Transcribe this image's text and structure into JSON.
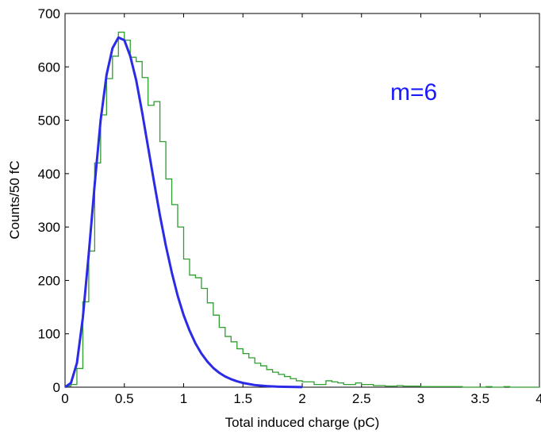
{
  "chart_data": {
    "type": "line",
    "xlabel": "Total induced charge (pC)",
    "ylabel": "Counts/50 fC",
    "xlim": [
      0,
      4
    ],
    "ylim": [
      0,
      700
    ],
    "xticks": [
      0,
      0.5,
      1,
      1.5,
      2,
      2.5,
      3,
      3.5,
      4
    ],
    "xtick_labels": [
      "0",
      "0.5",
      "1",
      "1.5",
      "2",
      "2.5",
      "3",
      "3.5",
      "4"
    ],
    "yticks": [
      0,
      100,
      200,
      300,
      400,
      500,
      600,
      700
    ],
    "ytick_labels": [
      "0",
      "100",
      "200",
      "300",
      "400",
      "500",
      "600",
      "700"
    ],
    "grid": false,
    "annotation": {
      "text": "m=6",
      "color": "#1a1aff"
    },
    "series": [
      {
        "kind": "histogram-step",
        "color": "#2e9e2e",
        "bin_width": 0.05,
        "x": [
          0,
          0.05,
          0.1,
          0.15,
          0.2,
          0.25,
          0.3,
          0.35,
          0.4,
          0.45,
          0.5,
          0.55,
          0.6,
          0.65,
          0.7,
          0.75,
          0.8,
          0.85,
          0.9,
          0.95,
          1.0,
          1.05,
          1.1,
          1.15,
          1.2,
          1.25,
          1.3,
          1.35,
          1.4,
          1.45,
          1.5,
          1.55,
          1.6,
          1.65,
          1.7,
          1.75,
          1.8,
          1.85,
          1.9,
          1.95,
          2.0,
          2.05,
          2.1,
          2.15,
          2.2,
          2.25,
          2.3,
          2.35,
          2.4,
          2.45,
          2.5,
          2.55,
          2.6,
          2.65,
          2.7,
          2.75,
          2.8,
          2.85,
          2.9,
          2.95,
          3.0,
          3.05,
          3.1,
          3.15,
          3.2,
          3.25,
          3.3,
          3.35,
          3.4,
          3.45,
          3.5,
          3.55,
          3.6,
          3.65,
          3.7,
          3.75,
          3.8,
          3.85,
          3.9,
          3.95
        ],
        "values": [
          2,
          5,
          35,
          160,
          255,
          420,
          510,
          578,
          620,
          665,
          650,
          618,
          610,
          580,
          528,
          535,
          460,
          390,
          342,
          300,
          240,
          210,
          205,
          185,
          158,
          135,
          112,
          95,
          85,
          72,
          63,
          55,
          45,
          40,
          33,
          28,
          24,
          20,
          16,
          12,
          10,
          10,
          5,
          5,
          12,
          10,
          8,
          5,
          5,
          8,
          5,
          5,
          3,
          3,
          2,
          2,
          3,
          2,
          2,
          2,
          1,
          1,
          1,
          1,
          1,
          1,
          1,
          0,
          0,
          0,
          0,
          1,
          0,
          0,
          1,
          0,
          0,
          0,
          0,
          0
        ]
      },
      {
        "kind": "fit-curve",
        "color": "#2b2be6",
        "x": [
          0,
          0.05,
          0.1,
          0.15,
          0.2,
          0.25,
          0.3,
          0.35,
          0.4,
          0.45,
          0.5,
          0.55,
          0.6,
          0.65,
          0.7,
          0.75,
          0.8,
          0.85,
          0.9,
          0.95,
          1.0,
          1.05,
          1.1,
          1.15,
          1.2,
          1.25,
          1.3,
          1.35,
          1.4,
          1.45,
          1.5,
          1.55,
          1.6,
          1.65,
          1.7,
          1.75,
          1.8,
          1.85,
          1.9,
          1.95,
          2.0
        ],
        "values": [
          0,
          8,
          45,
          130,
          250,
          380,
          500,
          585,
          635,
          655,
          650,
          620,
          575,
          515,
          450,
          385,
          322,
          265,
          215,
          171,
          135,
          106,
          82,
          63,
          48,
          36,
          27,
          20,
          15,
          11,
          8,
          6,
          4,
          3,
          2,
          1.5,
          1,
          0.7,
          0.5,
          0.3,
          0.2
        ]
      }
    ]
  }
}
